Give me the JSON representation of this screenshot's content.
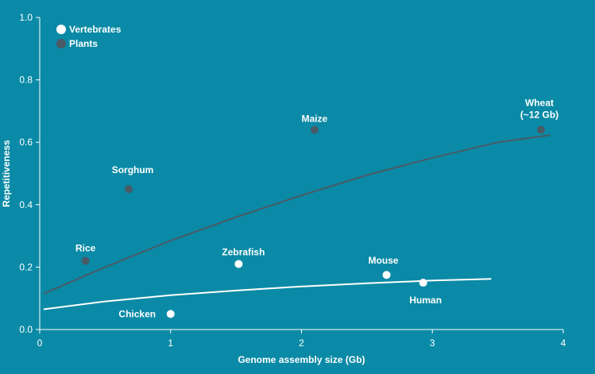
{
  "chart_data": {
    "type": "scatter",
    "xlabel": "Genome assembly size (Gb)",
    "ylabel": "Repetitiveness",
    "xlim": [
      0,
      4
    ],
    "ylim": [
      0,
      1.0
    ],
    "x_ticks": [
      "0",
      "1",
      "2",
      "3",
      "4"
    ],
    "y_ticks": [
      "0.0",
      "0.2",
      "0.4",
      "0.6",
      "0.8",
      "1.0"
    ],
    "grid": false,
    "legend_position": "top-left",
    "series": [
      {
        "name": "Vertebrates",
        "color": "#ffffff",
        "points": [
          {
            "label": "Chicken",
            "x": 1.0,
            "y": 0.05
          },
          {
            "label": "Zebrafish",
            "x": 1.52,
            "y": 0.21
          },
          {
            "label": "Mouse",
            "x": 2.65,
            "y": 0.175
          },
          {
            "label": "Human",
            "x": 2.93,
            "y": 0.15
          }
        ],
        "trend": [
          [
            0.03,
            0.065
          ],
          [
            0.5,
            0.09
          ],
          [
            1.0,
            0.11
          ],
          [
            1.5,
            0.125
          ],
          [
            2.0,
            0.138
          ],
          [
            2.5,
            0.148
          ],
          [
            3.0,
            0.157
          ],
          [
            3.45,
            0.162
          ]
        ]
      },
      {
        "name": "Plants",
        "color": "#4a5a66",
        "points": [
          {
            "label": "Rice",
            "x": 0.35,
            "y": 0.22
          },
          {
            "label": "Sorghum",
            "x": 0.68,
            "y": 0.45
          },
          {
            "label": "Maize",
            "x": 2.1,
            "y": 0.64
          },
          {
            "label": "Wheat",
            "label2": "(~12 Gb)",
            "x": 3.83,
            "y": 0.64
          }
        ],
        "trend": [
          [
            0.03,
            0.115
          ],
          [
            0.5,
            0.2
          ],
          [
            1.0,
            0.285
          ],
          [
            1.5,
            0.36
          ],
          [
            2.0,
            0.43
          ],
          [
            2.5,
            0.495
          ],
          [
            3.0,
            0.55
          ],
          [
            3.5,
            0.6
          ],
          [
            3.9,
            0.623
          ]
        ]
      }
    ]
  }
}
